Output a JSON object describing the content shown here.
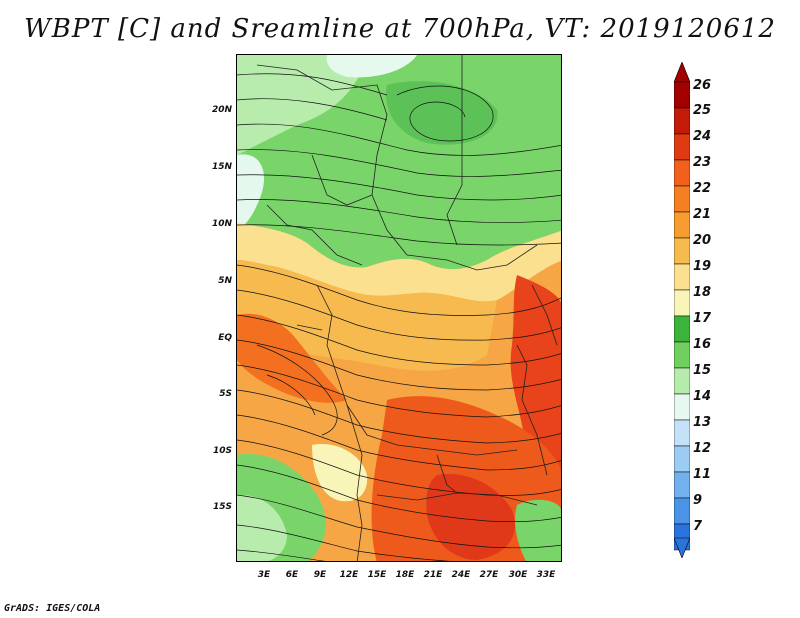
{
  "title": "WBPT [C] and Sreamline at 700hPa, VT: 2019120612",
  "footer": "GrADS: IGES/COLA",
  "lat_labels": [
    "20N",
    "15N",
    "10N",
    "5N",
    "EQ",
    "5S",
    "10S",
    "15S"
  ],
  "lon_labels": [
    "3E",
    "6E",
    "9E",
    "12E",
    "15E",
    "18E",
    "21E",
    "24E",
    "27E",
    "30E",
    "33E"
  ],
  "colorbar": {
    "labels": [
      "26",
      "25",
      "24",
      "23",
      "22",
      "21",
      "20",
      "19",
      "18",
      "17",
      "16",
      "15",
      "14",
      "13",
      "12",
      "11",
      "9",
      "7"
    ],
    "colors": [
      "#a30000",
      "#c41a0a",
      "#e03a13",
      "#f2601d",
      "#f57f22",
      "#f79c2e",
      "#f7ba4f",
      "#fbe08f",
      "#f9f5b8",
      "#3cb43c",
      "#6fd060",
      "#b6ecab",
      "#e6f9ef",
      "#c4e1f8",
      "#9ccbf4",
      "#73b0ee",
      "#4b93e6",
      "#2a72dc"
    ],
    "top_color": "#a30000",
    "bottom_color": "#2a72dc"
  }
}
